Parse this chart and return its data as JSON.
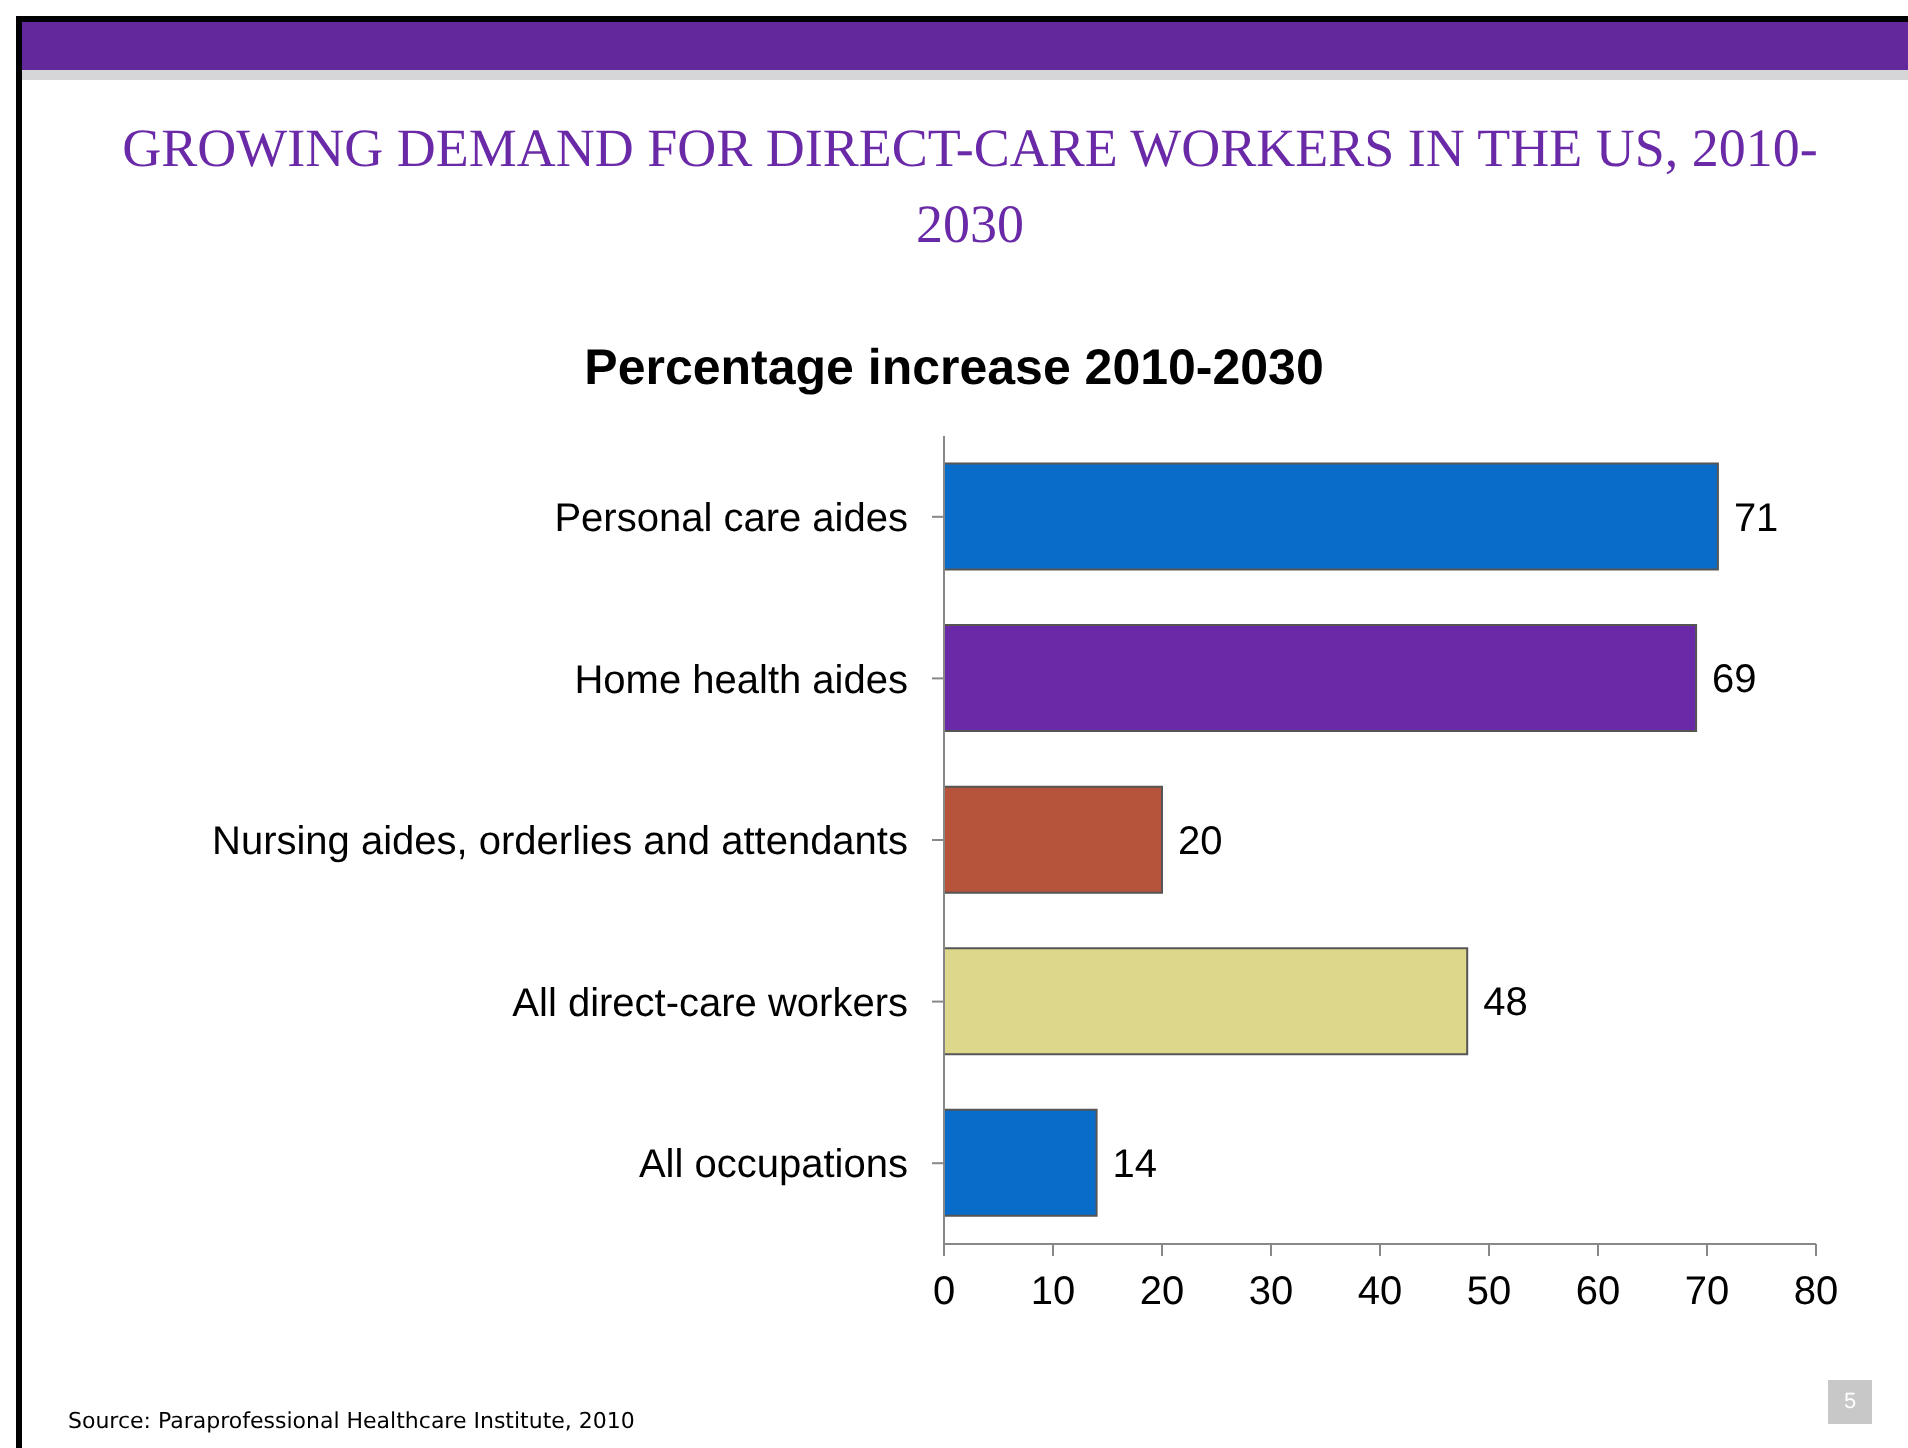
{
  "chart_data": {
    "type": "bar",
    "orientation": "horizontal",
    "title": "GROWING DEMAND FOR DIRECT-CARE WORKERS IN THE US, 2010-2030",
    "subtitle": "Percentage increase 2010-2030",
    "categories": [
      "Personal care aides",
      "Home health aides",
      "Nursing aides, orderlies and attendants",
      "All direct-care workers",
      "All occupations"
    ],
    "values": [
      71,
      69,
      20,
      48,
      14
    ],
    "colors": [
      "#0a6cc9",
      "#6a2aa8",
      "#b5533b",
      "#dcd78a",
      "#0a6cc9"
    ],
    "data_labels": true,
    "grid": false,
    "legend": false,
    "xlim": [
      0,
      80
    ],
    "xticks": [
      0,
      10,
      20,
      30,
      40,
      50,
      60,
      70,
      80
    ],
    "annotations": [
      "Source: Paraprofessional Healthcare Institute, 2010",
      "5"
    ]
  }
}
